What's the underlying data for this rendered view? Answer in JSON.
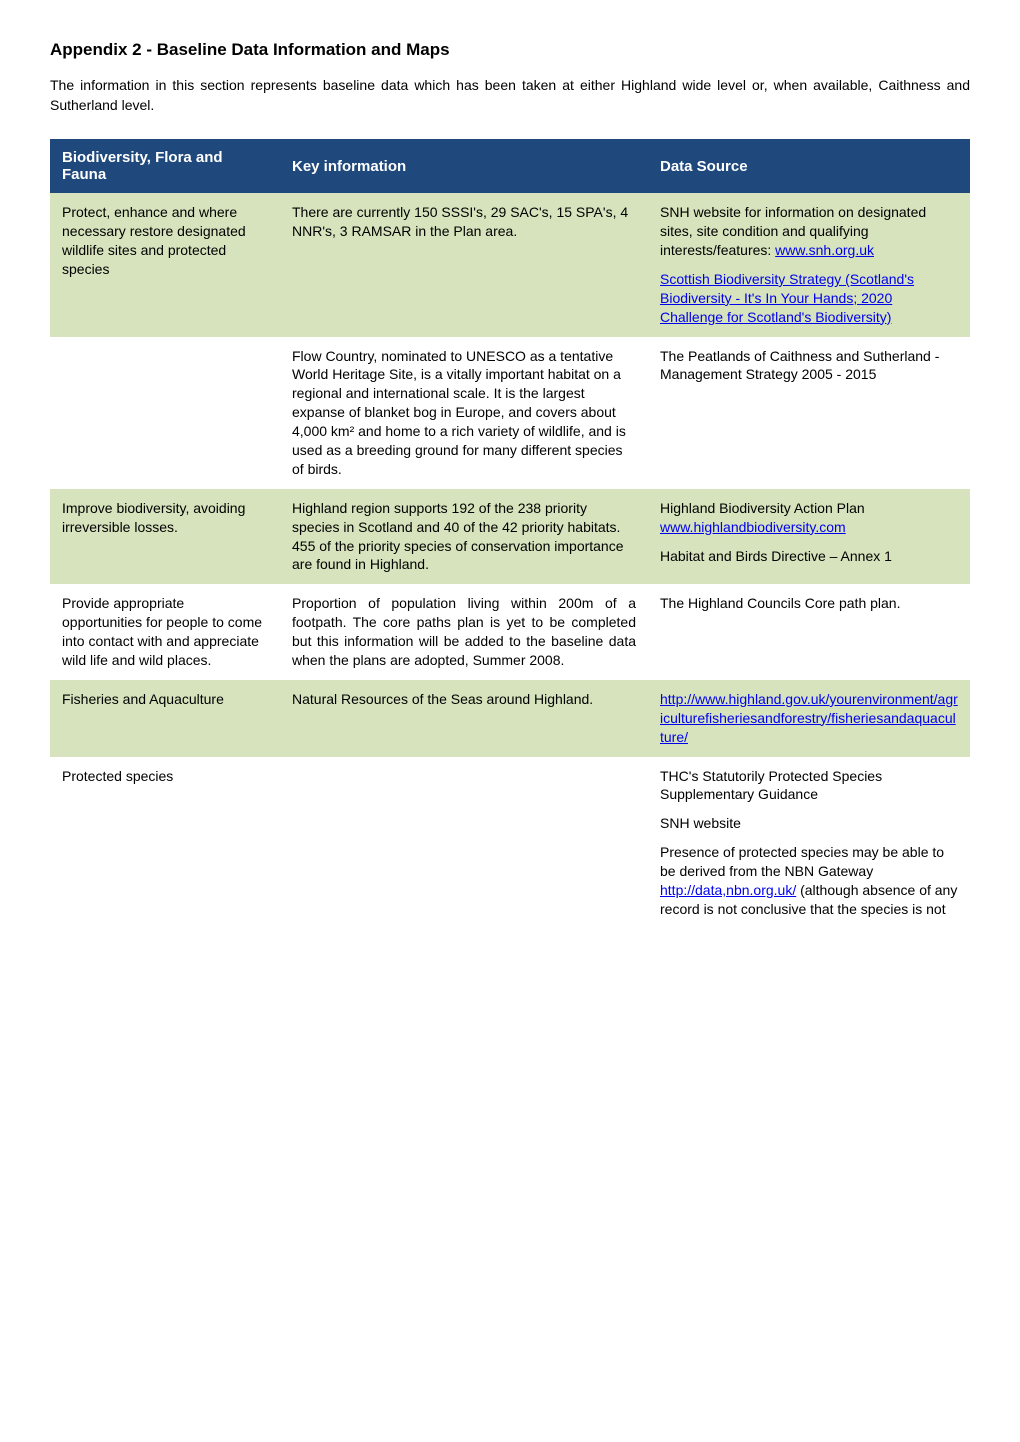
{
  "heading": "Appendix 2 - Baseline Data Information and Maps",
  "intro": "The information in this section represents baseline data which has been taken at either Highland wide level or, when available, Caithness and Sutherland level.",
  "headers": {
    "col1": "Biodiversity, Flora and Fauna",
    "col2": "Key information",
    "col3": "Data Source"
  },
  "rows": {
    "r1": {
      "c1": "Protect, enhance and where necessary restore designated wildlife sites and protected species",
      "c2": "There are currently 150 SSSI's, 29 SAC's, 15 SPA's, 4 NNR's, 3 RAMSAR in the Plan area.",
      "c3a": "SNH website for information on designated sites, site condition and qualifying interests/features: ",
      "c3a_link": "www.snh.org.uk",
      "c3b_link": "Scottish Biodiversity Strategy (Scotland's Biodiversity - It's In Your Hands; 2020 Challenge for Scotland's Biodiversity)"
    },
    "r2": {
      "c1": "",
      "c2": "Flow Country, nominated to UNESCO as a tentative World Heritage Site, is a vitally important habitat on a regional and international scale. It is the largest expanse of blanket bog in Europe, and covers about 4,000 km² and home to a rich variety of wildlife, and is used as a breeding ground for many different species of birds.",
      "c3": "The Peatlands of Caithness and Sutherland - Management Strategy 2005 - 2015"
    },
    "r3": {
      "c1": "Improve biodiversity, avoiding irreversible losses.",
      "c2": "Highland region supports 192 of the 238 priority species in Scotland and 40 of the 42 priority habitats. 455 of the priority species of conservation importance are found in Highland.",
      "c3a": "Highland Biodiversity Action Plan ",
      "c3a_link": "www.highlandbiodiversity.com",
      "c3b": "Habitat and Birds Directive – Annex 1"
    },
    "r4": {
      "c1": "Provide appropriate opportunities for people to come into contact with and appreciate wild life and wild places.",
      "c2": "Proportion of population living within 200m of a footpath. The core paths plan is yet to be completed but this information will be added to the baseline data when the plans are adopted, Summer 2008.",
      "c3": "The Highland Councils Core path plan."
    },
    "r5": {
      "c1": "Fisheries and Aquaculture",
      "c2": "Natural Resources of the Seas around Highland.",
      "c3_link": "http://www.highland.gov.uk/yourenvironment/agriculturefisheriesandforestry/fisheriesandaquaculture/"
    },
    "r6": {
      "c1": "Protected species",
      "c2": "",
      "c3a": "THC's Statutorily Protected Species Supplementary Guidance",
      "c3b": "SNH website",
      "c3c_pre": "Presence of protected species may be able to be derived from the NBN Gateway ",
      "c3c_link": "http://data,nbn.org.uk/",
      "c3c_post": " (although absence of any record is not conclusive that the species is not"
    }
  }
}
